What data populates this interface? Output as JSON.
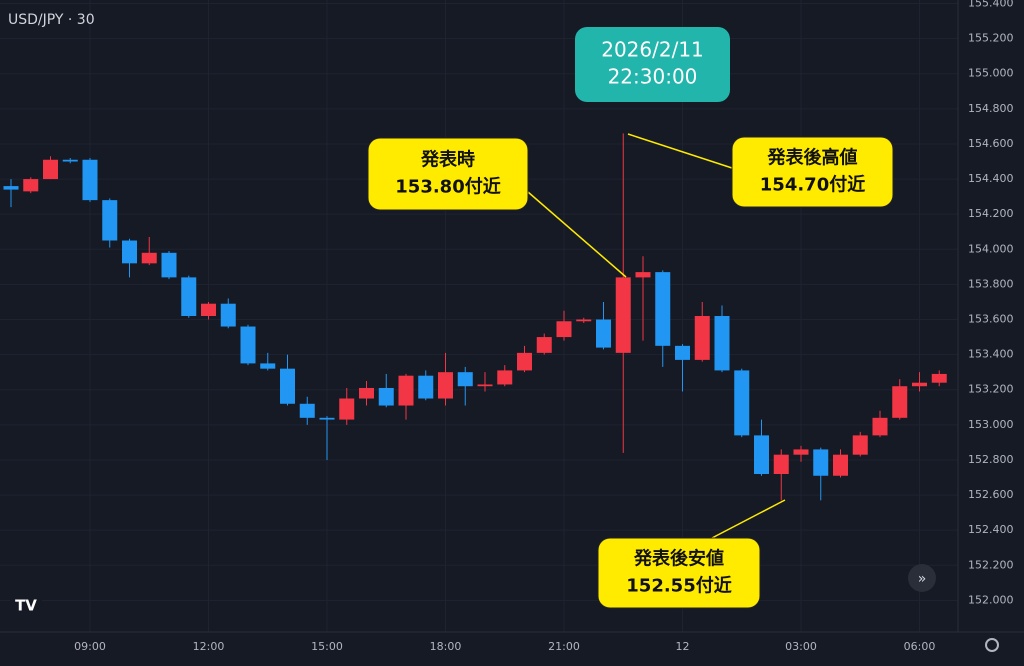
{
  "chart_data": {
    "type": "candlestick",
    "title": "USD/JPY · 30",
    "categories": [
      null,
      null,
      null,
      null,
      "09:00",
      null,
      null,
      null,
      null,
      null,
      "12:00",
      null,
      null,
      null,
      null,
      null,
      "15:00",
      null,
      null,
      null,
      null,
      null,
      "18:00",
      null,
      null,
      null,
      null,
      null,
      "21:00",
      null,
      null,
      null,
      null,
      null,
      "12",
      null,
      null,
      null,
      null,
      null,
      "03:00",
      null,
      null,
      null,
      null,
      null,
      "06:00",
      null
    ],
    "open": [
      154.36,
      154.33,
      154.4,
      154.51,
      154.51,
      154.28,
      154.05,
      153.92,
      153.98,
      153.84,
      153.62,
      153.69,
      153.56,
      153.35,
      153.32,
      153.12,
      153.04,
      153.03,
      153.15,
      153.21,
      153.11,
      153.28,
      153.15,
      153.3,
      153.22,
      153.23,
      153.31,
      153.41,
      153.5,
      153.59,
      153.6,
      153.41,
      153.84,
      153.87,
      153.45,
      153.37,
      153.62,
      153.31,
      152.94,
      152.72,
      152.83,
      152.86,
      152.71,
      152.83,
      152.94,
      153.04,
      153.22,
      153.24
    ],
    "high": [
      154.4,
      154.41,
      154.53,
      154.52,
      154.52,
      154.29,
      154.06,
      154.07,
      153.99,
      153.85,
      153.7,
      153.72,
      153.57,
      153.41,
      153.4,
      153.16,
      153.05,
      153.21,
      153.25,
      153.29,
      153.29,
      153.31,
      153.41,
      153.33,
      153.3,
      153.34,
      153.45,
      153.52,
      153.65,
      153.61,
      153.7,
      154.66,
      153.96,
      153.88,
      153.46,
      153.7,
      153.68,
      153.32,
      153.03,
      152.86,
      152.88,
      152.87,
      152.86,
      152.96,
      153.08,
      153.26,
      153.3,
      153.31
    ],
    "low": [
      154.24,
      154.32,
      154.4,
      154.49,
      154.27,
      154.01,
      153.84,
      153.91,
      153.83,
      153.61,
      153.6,
      153.55,
      153.34,
      153.31,
      153.11,
      153.0,
      152.8,
      153.0,
      153.11,
      153.1,
      153.03,
      153.14,
      153.11,
      153.11,
      153.19,
      153.22,
      153.3,
      153.4,
      153.48,
      153.58,
      153.43,
      152.84,
      153.48,
      153.33,
      153.19,
      153.36,
      153.3,
      152.93,
      152.71,
      152.57,
      152.79,
      152.57,
      152.7,
      152.82,
      152.93,
      153.03,
      153.19,
      153.22
    ],
    "close": [
      154.34,
      154.4,
      154.51,
      154.5,
      154.28,
      154.05,
      153.92,
      153.98,
      153.84,
      153.62,
      153.69,
      153.56,
      153.35,
      153.32,
      153.12,
      153.04,
      153.03,
      153.15,
      153.21,
      153.11,
      153.28,
      153.15,
      153.3,
      153.22,
      153.23,
      153.31,
      153.41,
      153.5,
      153.59,
      153.6,
      153.44,
      153.84,
      153.87,
      153.45,
      153.37,
      153.62,
      153.31,
      152.94,
      152.72,
      152.83,
      152.86,
      152.71,
      152.83,
      152.94,
      153.04,
      153.22,
      153.24,
      153.29
    ],
    "up_color": "#f23645",
    "down_color": "#2196f3",
    "ylim": [
      151.82,
      155.42
    ],
    "yticks": [
      {
        "value": 152.0,
        "label": "152.000"
      },
      {
        "value": 152.2,
        "label": "152.200"
      },
      {
        "value": 152.4,
        "label": "152.400"
      },
      {
        "value": 152.6,
        "label": "152.600"
      },
      {
        "value": 152.8,
        "label": "152.800"
      },
      {
        "value": 153.0,
        "label": "153.000"
      },
      {
        "value": 153.2,
        "label": "153.200"
      },
      {
        "value": 153.4,
        "label": "153.400"
      },
      {
        "value": 153.6,
        "label": "153.600"
      },
      {
        "value": 153.8,
        "label": "153.800"
      },
      {
        "value": 154.0,
        "label": "154.000"
      },
      {
        "value": 154.2,
        "label": "154.200"
      },
      {
        "value": 154.4,
        "label": "154.400"
      },
      {
        "value": 154.6,
        "label": "154.600"
      },
      {
        "value": 154.8,
        "label": "154.800"
      },
      {
        "value": 155.0,
        "label": "155.000"
      },
      {
        "value": 155.2,
        "label": "155.200"
      },
      {
        "value": 155.4,
        "label": "155.400"
      }
    ],
    "grid": true,
    "annotations": [
      {
        "lines": [
          "2026/2/11",
          "22:30:00"
        ]
      },
      {
        "lines": [
          "発表時",
          "153.80付近"
        ]
      },
      {
        "lines": [
          "発表後高値",
          "154.70付近"
        ]
      },
      {
        "lines": [
          "発表後安値",
          "152.55付近"
        ]
      }
    ]
  }
}
